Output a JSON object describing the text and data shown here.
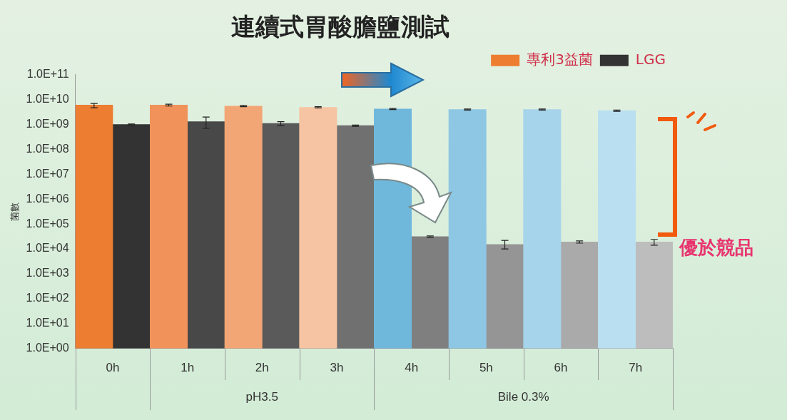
{
  "chart_data": {
    "type": "bar",
    "title": "連續式胃酸膽鹽測試",
    "ylabel": "菌數",
    "categories": [
      "0h",
      "1h",
      "2h",
      "3h",
      "4h",
      "5h",
      "6h",
      "7h"
    ],
    "series": [
      {
        "name": "專利3益菌",
        "color": "#ed7d31",
        "colors": [
          "#ed7d31",
          "#f0925a",
          "#f2a675",
          "#f6c4a2",
          "#6fb8dc",
          "#8ec7e3",
          "#a6d4ea",
          "#b9dff0"
        ],
        "values": [
          6000000000.0,
          6000000000.0,
          5500000000.0,
          4900000000.0,
          4200000000.0,
          4000000000.0,
          4000000000.0,
          3600000000.0
        ],
        "errors": [
          [
            4700000000.0,
            7000000000.0
          ],
          [
            5500000000.0,
            6500000000.0
          ],
          [
            5200000000.0,
            5800000000.0
          ],
          [
            4600000000.0,
            5200000000.0
          ],
          [
            4000000000.0,
            4400000000.0
          ],
          [
            3800000000.0,
            4200000000.0
          ],
          [
            3800000000.0,
            4200000000.0
          ],
          [
            3400000000.0,
            3800000000.0
          ]
        ]
      },
      {
        "name": "LGG",
        "color": "#333333",
        "colors": [
          "#333333",
          "#484848",
          "#5a5a5a",
          "#707070",
          "#7f7f7f",
          "#959595",
          "#aaaaaa",
          "#bdbdbd"
        ],
        "values": [
          1000000000.0,
          1300000000.0,
          1100000000.0,
          900000000.0,
          31000.0,
          15000.0,
          19000.0,
          19000.0
        ],
        "errors": [
          [
            950000000.0,
            1050000000.0
          ],
          [
            700000000.0,
            2000000000.0
          ],
          [
            900000000.0,
            1300000000.0
          ],
          [
            850000000.0,
            950000000.0
          ],
          [
            29000.0,
            33000.0
          ],
          [
            10000.0,
            22000.0
          ],
          [
            17000.0,
            21000.0
          ],
          [
            14000.0,
            24000.0
          ]
        ]
      }
    ],
    "log": "y",
    "ylim": [
      1,
      100000000000.0
    ],
    "yticks": [
      {
        "value": 1,
        "label": "1.0E+00"
      },
      {
        "value": 10,
        "label": "1.0E+01"
      },
      {
        "value": 100,
        "label": "1.0E+02"
      },
      {
        "value": 1000,
        "label": "1.0E+03"
      },
      {
        "value": 10000,
        "label": "1.0E+04"
      },
      {
        "value": 100000,
        "label": "1.0E+05"
      },
      {
        "value": 1000000,
        "label": "1.0E+06"
      },
      {
        "value": 10000000,
        "label": "1.0E+07"
      },
      {
        "value": 100000000,
        "label": "1.0E+08"
      },
      {
        "value": 1000000000,
        "label": "1.0E+09"
      },
      {
        "value": 10000000000,
        "label": "1.0E+10"
      },
      {
        "value": 100000000000,
        "label": "1.0E+11"
      }
    ],
    "grid": false,
    "legend": "top right",
    "annotations": [
      "優於競品",
      "pH3.5",
      "Bile 0.3%"
    ]
  }
}
